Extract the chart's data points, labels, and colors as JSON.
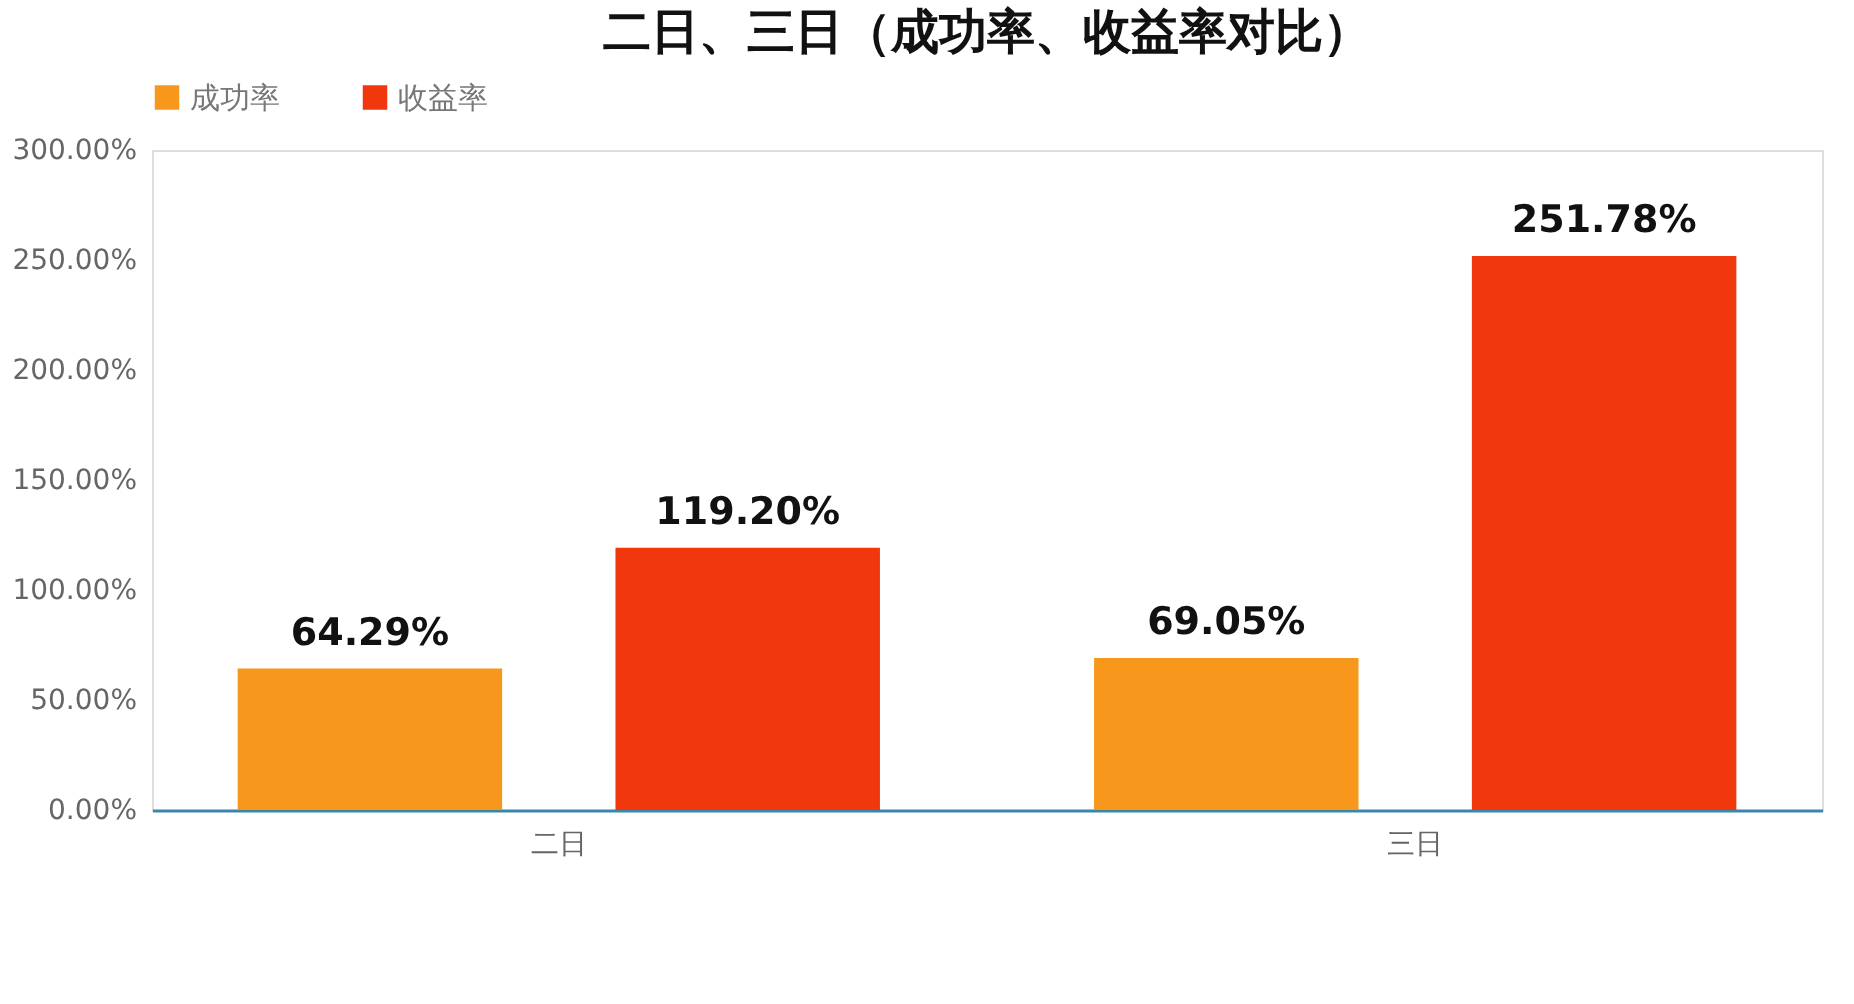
{
  "chart_data": {
    "type": "bar",
    "title": "二日、三日（成功率、收益率对比）",
    "categories": [
      "二日",
      "三日"
    ],
    "series": [
      {
        "name": "成功率",
        "color": "#f7981d",
        "values": [
          64.29,
          69.05
        ],
        "value_labels": [
          "64.29%",
          "69.05%"
        ]
      },
      {
        "name": "收益率",
        "color": "#f0380c",
        "values": [
          119.2,
          251.78
        ],
        "value_labels": [
          "119.20%",
          "251.78%"
        ]
      }
    ],
    "ylim": [
      0,
      300
    ],
    "yticks": [
      {
        "value": 0,
        "label": "0.00%"
      },
      {
        "value": 50,
        "label": "50.00%"
      },
      {
        "value": 100,
        "label": "100.00%"
      },
      {
        "value": 150,
        "label": "150.00%"
      },
      {
        "value": 200,
        "label": "200.00%"
      },
      {
        "value": 250,
        "label": "250.00%"
      },
      {
        "value": 300,
        "label": "300.00%"
      }
    ],
    "grid": false,
    "legend": "top"
  }
}
